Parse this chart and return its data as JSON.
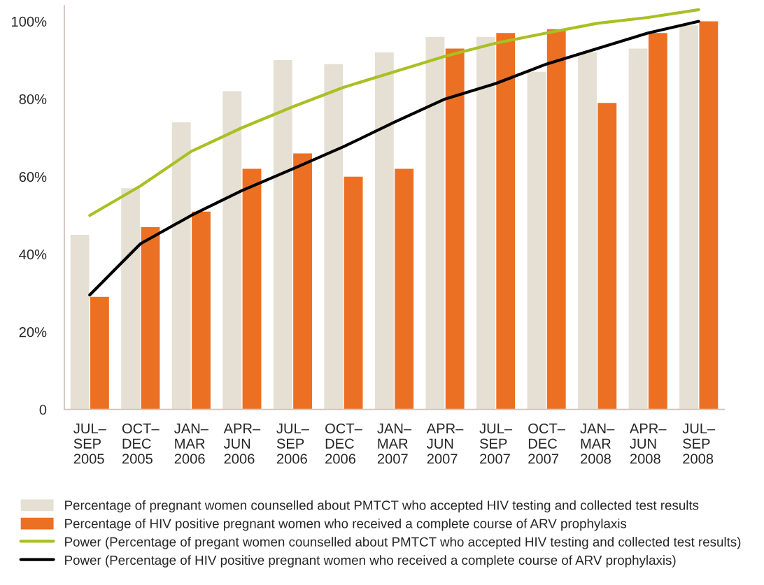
{
  "chart_data": {
    "type": "bar",
    "categories": [
      "JUL–\nSEP\n2005",
      "OCT–\nDEC\n2005",
      "JAN–\nMAR\n2006",
      "APR–\nJUN\n2006",
      "JUL–\nSEP\n2006",
      "OCT–\nDEC\n2006",
      "JAN–\nMAR\n2007",
      "APR–\nJUN\n2007",
      "JUL–\nSEP\n2007",
      "OCT–\nDEC\n2007",
      "JAN–\nMAR\n2008",
      "APR–\nJUN\n2008",
      "JUL–\nSEP\n2008"
    ],
    "series": [
      {
        "name": "Percentage of pregnant women counselled about PMTCT who accepted HIV testing and collected test results",
        "color": "#e6e0d4",
        "values": [
          45,
          57,
          74,
          82,
          90,
          89,
          92,
          96,
          96,
          87,
          92,
          93,
          99
        ]
      },
      {
        "name": "Percentage of HIV positive pregnant women who received a complete course of ARV prophylaxis",
        "color": "#ec7023",
        "values": [
          29,
          47,
          51,
          62,
          66,
          60,
          62,
          93,
          97,
          98,
          79,
          97,
          100
        ]
      },
      {
        "type": "line",
        "name": "Power (Percentage of pregant women counselled about PMTCT who accepted HIV testing and collected test results)",
        "color": "#a9c023",
        "values": [
          50,
          57.6,
          66.5,
          72.6,
          78,
          83,
          87,
          91,
          94.4,
          97,
          99.5,
          101,
          103
        ]
      },
      {
        "type": "line",
        "name": "Power (Percentage of HIV positive pregnant women who received a complete course of ARV prophylaxis)",
        "color": "#000000",
        "values": [
          29.5,
          42.7,
          50,
          56.4,
          62,
          67.7,
          74,
          80,
          84,
          89,
          93,
          97,
          100
        ]
      }
    ],
    "ylim": [
      0,
      104
    ],
    "yticks": [
      {
        "value": 0,
        "label": "0"
      },
      {
        "value": 20,
        "label": "20%"
      },
      {
        "value": 40,
        "label": "40%"
      },
      {
        "value": 60,
        "label": "60%"
      },
      {
        "value": 80,
        "label": "80%"
      },
      {
        "value": 100,
        "label": "100%"
      }
    ],
    "grid": false,
    "legend": "bottom",
    "line_style": "solid",
    "marker": "none"
  }
}
